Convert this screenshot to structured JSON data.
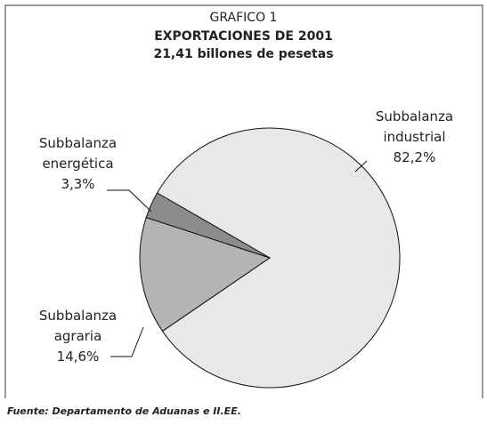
{
  "chart_data": {
    "type": "pie",
    "title": "GRAFICO 1",
    "subtitle": "EXPORTACIONES DE 2001",
    "subtitle2": "21,41 billones de pesetas",
    "categories": [
      "Subbalanza industrial",
      "Subbalanza agraria",
      "Subbalanza energética"
    ],
    "values": [
      82.2,
      14.6,
      3.3
    ],
    "value_labels": [
      "82,2%",
      "14,6%",
      "3,3%"
    ],
    "colors": [
      "#e8e8e8",
      "#b4b4b4",
      "#8c8c8c"
    ],
    "source": "Fuente: Departamento de Aduanas e II.EE."
  }
}
